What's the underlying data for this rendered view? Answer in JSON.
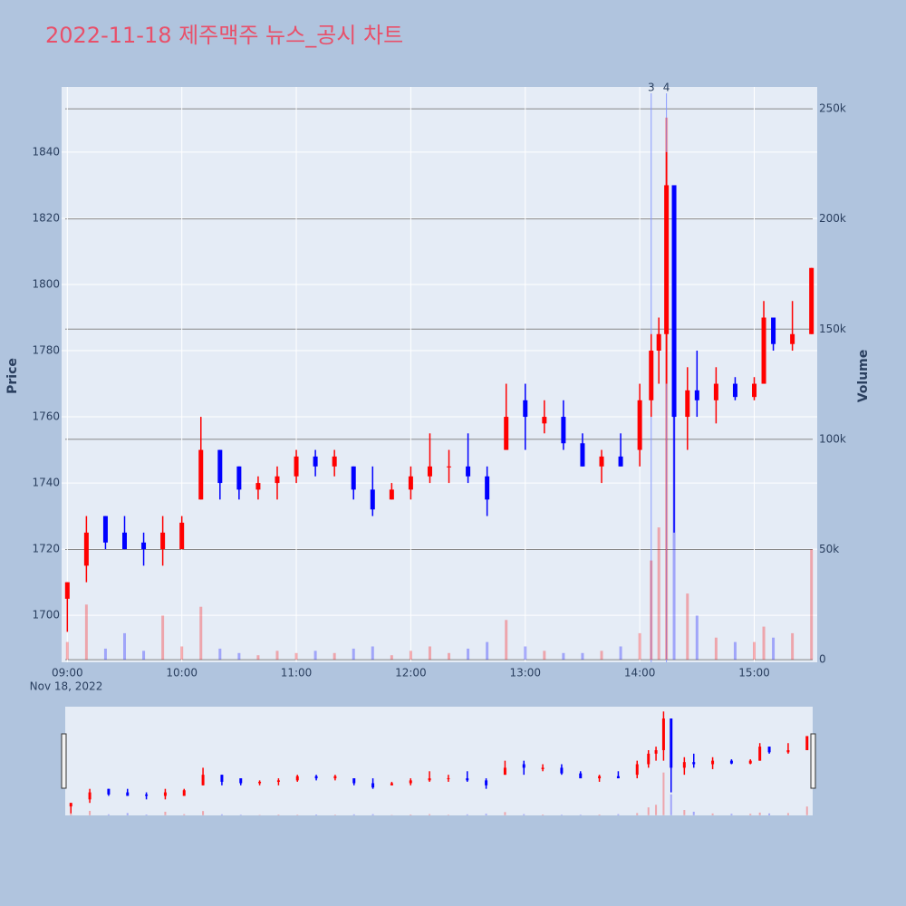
{
  "chart_data": {
    "type": "candlestick",
    "title": "2022-11-18 제주맥주 뉴스_공시 차트",
    "y_label": "Price",
    "y2_label": "Volume",
    "x_date_label": "Nov 18, 2022",
    "up_color": "#ff0000",
    "down_color": "#0000ff",
    "x": [
      "2022-11-18 09:00",
      "2022-11-18 09:10",
      "2022-11-18 09:20",
      "2022-11-18 09:30",
      "2022-11-18 09:40",
      "2022-11-18 09:50",
      "2022-11-18 10:00",
      "2022-11-18 10:10",
      "2022-11-18 10:20",
      "2022-11-18 10:30",
      "2022-11-18 10:40",
      "2022-11-18 10:50",
      "2022-11-18 11:00",
      "2022-11-18 11:10",
      "2022-11-18 11:20",
      "2022-11-18 11:30",
      "2022-11-18 11:40",
      "2022-11-18 11:50",
      "2022-11-18 12:00",
      "2022-11-18 12:10",
      "2022-11-18 12:20",
      "2022-11-18 12:30",
      "2022-11-18 12:40",
      "2022-11-18 12:50",
      "2022-11-18 13:00",
      "2022-11-18 13:10",
      "2022-11-18 13:20",
      "2022-11-18 13:30",
      "2022-11-18 13:40",
      "2022-11-18 13:50",
      "2022-11-18 14:00",
      "2022-11-18 14:06",
      "2022-11-18 14:10",
      "2022-11-18 14:14",
      "2022-11-18 14:18",
      "2022-11-18 14:25",
      "2022-11-18 14:30",
      "2022-11-18 14:40",
      "2022-11-18 14:50",
      "2022-11-18 15:00",
      "2022-11-18 15:05",
      "2022-11-18 15:10",
      "2022-11-18 15:20",
      "2022-11-18 15:30"
    ],
    "open": [
      1705,
      1715,
      1730,
      1725,
      1722,
      1720,
      1720,
      1735,
      1750,
      1745,
      1738,
      1740,
      1742,
      1748,
      1745,
      1745,
      1738,
      1735,
      1738,
      1742,
      1745,
      1745,
      1742,
      1750,
      1765,
      1758,
      1760,
      1752,
      1745,
      1748,
      1750,
      1765,
      1780,
      1785,
      1830,
      1760,
      1768,
      1765,
      1770,
      1766,
      1770,
      1790,
      1782,
      1785
    ],
    "high": [
      1710,
      1730,
      1730,
      1730,
      1725,
      1730,
      1730,
      1760,
      1750,
      1745,
      1742,
      1745,
      1750,
      1750,
      1750,
      1745,
      1745,
      1740,
      1745,
      1755,
      1750,
      1755,
      1745,
      1770,
      1770,
      1765,
      1765,
      1755,
      1750,
      1755,
      1770,
      1785,
      1790,
      1840,
      1830,
      1775,
      1780,
      1775,
      1772,
      1772,
      1795,
      1790,
      1795,
      1805
    ],
    "low": [
      1695,
      1710,
      1720,
      1720,
      1715,
      1715,
      1720,
      1735,
      1735,
      1735,
      1735,
      1735,
      1740,
      1742,
      1742,
      1735,
      1730,
      1735,
      1735,
      1740,
      1740,
      1740,
      1730,
      1750,
      1750,
      1755,
      1750,
      1745,
      1740,
      1745,
      1745,
      1760,
      1770,
      1770,
      1725,
      1750,
      1760,
      1758,
      1765,
      1765,
      1770,
      1780,
      1780,
      1785
    ],
    "close": [
      1710,
      1725,
      1722,
      1720,
      1720,
      1725,
      1728,
      1750,
      1740,
      1738,
      1740,
      1742,
      1748,
      1745,
      1748,
      1738,
      1732,
      1738,
      1742,
      1745,
      1745,
      1742,
      1735,
      1760,
      1760,
      1760,
      1752,
      1745,
      1748,
      1745,
      1765,
      1780,
      1785,
      1830,
      1760,
      1768,
      1765,
      1770,
      1766,
      1770,
      1790,
      1782,
      1785,
      1805
    ],
    "volume": [
      8000,
      25000,
      5000,
      12000,
      4000,
      20000,
      6000,
      24000,
      5000,
      3000,
      2000,
      4000,
      3000,
      4000,
      3000,
      5000,
      6000,
      2000,
      4000,
      6000,
      3000,
      5000,
      8000,
      18000,
      6000,
      4000,
      3000,
      3000,
      4000,
      6000,
      12000,
      45000,
      60000,
      246000,
      120000,
      30000,
      20000,
      10000,
      8000,
      8000,
      15000,
      10000,
      12000,
      50000
    ],
    "annotations": [
      {
        "x": "2022-11-18 14:06",
        "text": "3"
      },
      {
        "x": "2022-11-18 14:14",
        "text": "4"
      }
    ],
    "xlim": [
      "2022-11-18 08:57",
      "2022-11-18 15:33"
    ],
    "xticks": [
      {
        "value": "2022-11-18 09:00",
        "label": "09:00"
      },
      {
        "value": "2022-11-18 10:00",
        "label": "10:00"
      },
      {
        "value": "2022-11-18 11:00",
        "label": "11:00"
      },
      {
        "value": "2022-11-18 12:00",
        "label": "12:00"
      },
      {
        "value": "2022-11-18 13:00",
        "label": "13:00"
      },
      {
        "value": "2022-11-18 14:00",
        "label": "14:00"
      },
      {
        "value": "2022-11-18 15:00",
        "label": "15:00"
      }
    ],
    "ylim": [
      1685.8,
      1859.7
    ],
    "yticks": [
      1700,
      1720,
      1740,
      1760,
      1780,
      1800,
      1820,
      1840
    ],
    "y2lim": [
      -1200,
      259900
    ],
    "y2ticks": [
      0,
      {
        "value": 50000,
        "label": "50k"
      },
      {
        "value": 100000,
        "label": "100k"
      },
      {
        "value": 150000,
        "label": "150k"
      },
      {
        "value": 200000,
        "label": "200k"
      },
      {
        "value": 250000,
        "label": "250k"
      }
    ],
    "grid": true,
    "range_slider": true
  }
}
